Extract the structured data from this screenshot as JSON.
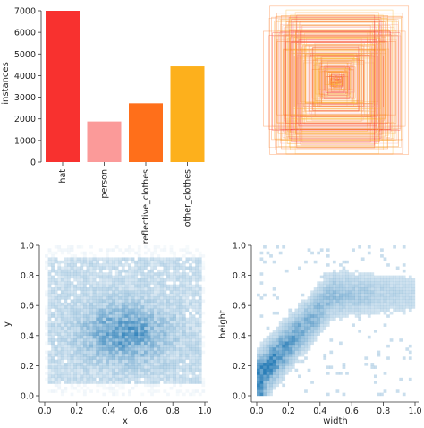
{
  "chart_data": [
    {
      "type": "bar",
      "categories": [
        "hat",
        "person",
        "reflective_clothes",
        "other_clothes"
      ],
      "values": [
        7000,
        1880,
        2720,
        4430
      ],
      "colors": [
        "#f8312f",
        "#fb9a99",
        "#ff6f1a",
        "#fdb01c"
      ],
      "title": "",
      "xlabel": "",
      "ylabel": "instances",
      "yticks": [
        "0",
        "1000",
        "2000",
        "3000",
        "4000",
        "5000",
        "6000",
        "7000"
      ],
      "ylim": [
        0,
        7000
      ]
    },
    {
      "type": "scatter",
      "title": "",
      "description_kind": "overlaid label rectangles centered in image",
      "palette": [
        "#f8312f",
        "#fb9a99",
        "#ff6f1a",
        "#fdb01c",
        "#f4a261",
        "#ffb347"
      ],
      "xlabel": "",
      "ylabel": ""
    },
    {
      "type": "heatmap",
      "title": "",
      "xlabel": "x",
      "ylabel": "y",
      "xlim": [
        0.0,
        1.0
      ],
      "ylim": [
        0.0,
        1.0
      ],
      "xticks": [
        "0.0",
        "0.2",
        "0.4",
        "0.6",
        "0.8",
        "1.0"
      ],
      "yticks": [
        "0.0",
        "0.2",
        "0.4",
        "0.6",
        "0.8",
        "1.0"
      ],
      "color": "#1f77b4",
      "grid": false
    },
    {
      "type": "heatmap",
      "title": "",
      "xlabel": "width",
      "ylabel": "height",
      "xlim": [
        0.0,
        1.0
      ],
      "ylim": [
        0.0,
        1.0
      ],
      "xticks": [
        "0.0",
        "0.2",
        "0.4",
        "0.6",
        "0.8",
        "1.0"
      ],
      "yticks": [
        "0.0",
        "0.2",
        "0.4",
        "0.6",
        "0.8",
        "1.0"
      ],
      "color": "#1f77b4",
      "grid": false
    }
  ]
}
